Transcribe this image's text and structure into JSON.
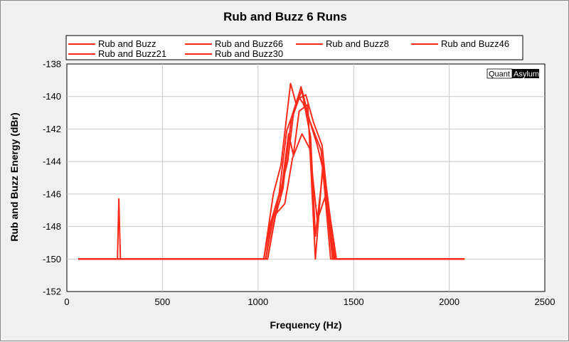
{
  "chart_data": {
    "type": "line",
    "title": "Rub and Buzz 6 Runs",
    "xlabel": "Frequency (Hz)",
    "ylabel": "Rub and Buzz Energy (dBr)",
    "xlim": [
      0,
      2500
    ],
    "ylim": [
      -152,
      -138
    ],
    "xticks": [
      0,
      500,
      1000,
      1500,
      2000,
      2500
    ],
    "yticks": [
      -138,
      -140,
      -142,
      -144,
      -146,
      -148,
      -150,
      -152
    ],
    "grid": true,
    "legend_placement": "top",
    "brand": {
      "left": "Quant",
      "right": "Asylum"
    },
    "series_color": "#ff2a1a",
    "series": [
      {
        "name": "Rub and Buzz",
        "x": [
          60,
          265,
          272,
          280,
          1030,
          1080,
          1120,
          1170,
          1200,
          1230,
          1270,
          1310,
          1340,
          1390,
          2080
        ],
        "y": [
          -150,
          -150,
          -146.3,
          -150,
          -150,
          -146,
          -144.2,
          -139.2,
          -140.5,
          -139.6,
          -141.5,
          -143,
          -144.5,
          -150,
          -150
        ]
      },
      {
        "name": "Rub and Buzz66",
        "x": [
          60,
          1050,
          1090,
          1130,
          1175,
          1210,
          1235,
          1280,
          1330,
          1380,
          2080
        ],
        "y": [
          -150,
          -150,
          -147.4,
          -145.7,
          -141.3,
          -140,
          -140.4,
          -141.8,
          -143.3,
          -150,
          -150
        ]
      },
      {
        "name": "Rub and Buzz8",
        "x": [
          60,
          1030,
          1060,
          1110,
          1150,
          1190,
          1225,
          1275,
          1300,
          1340,
          1410,
          2080
        ],
        "y": [
          -150,
          -150,
          -148,
          -146,
          -142.1,
          -140.8,
          -139.4,
          -142.5,
          -148.6,
          -144.5,
          -150,
          -150
        ]
      },
      {
        "name": "Rub and Buzz46",
        "x": [
          60,
          1040,
          1070,
          1115,
          1160,
          1185,
          1215,
          1260,
          1300,
          1340,
          1405,
          2080
        ],
        "y": [
          -150,
          -150,
          -147.7,
          -146.4,
          -142.3,
          -143.6,
          -140.9,
          -140.5,
          -150,
          -144,
          -150,
          -150
        ]
      },
      {
        "name": "Rub and Buzz21",
        "x": [
          60,
          1050,
          1100,
          1155,
          1185,
          1215,
          1250,
          1290,
          1335,
          1395,
          2080
        ],
        "y": [
          -150,
          -150,
          -146.6,
          -144,
          -141.1,
          -140.1,
          -139.9,
          -141.6,
          -143,
          -150,
          -150
        ]
      },
      {
        "name": "Rub and Buzz30",
        "x": [
          60,
          1040,
          1080,
          1140,
          1180,
          1230,
          1270,
          1310,
          1350,
          1400,
          2080
        ],
        "y": [
          -150,
          -150,
          -147.4,
          -146.6,
          -143.8,
          -142.3,
          -143.2,
          -147.6,
          -146.2,
          -150,
          -150
        ]
      }
    ]
  }
}
